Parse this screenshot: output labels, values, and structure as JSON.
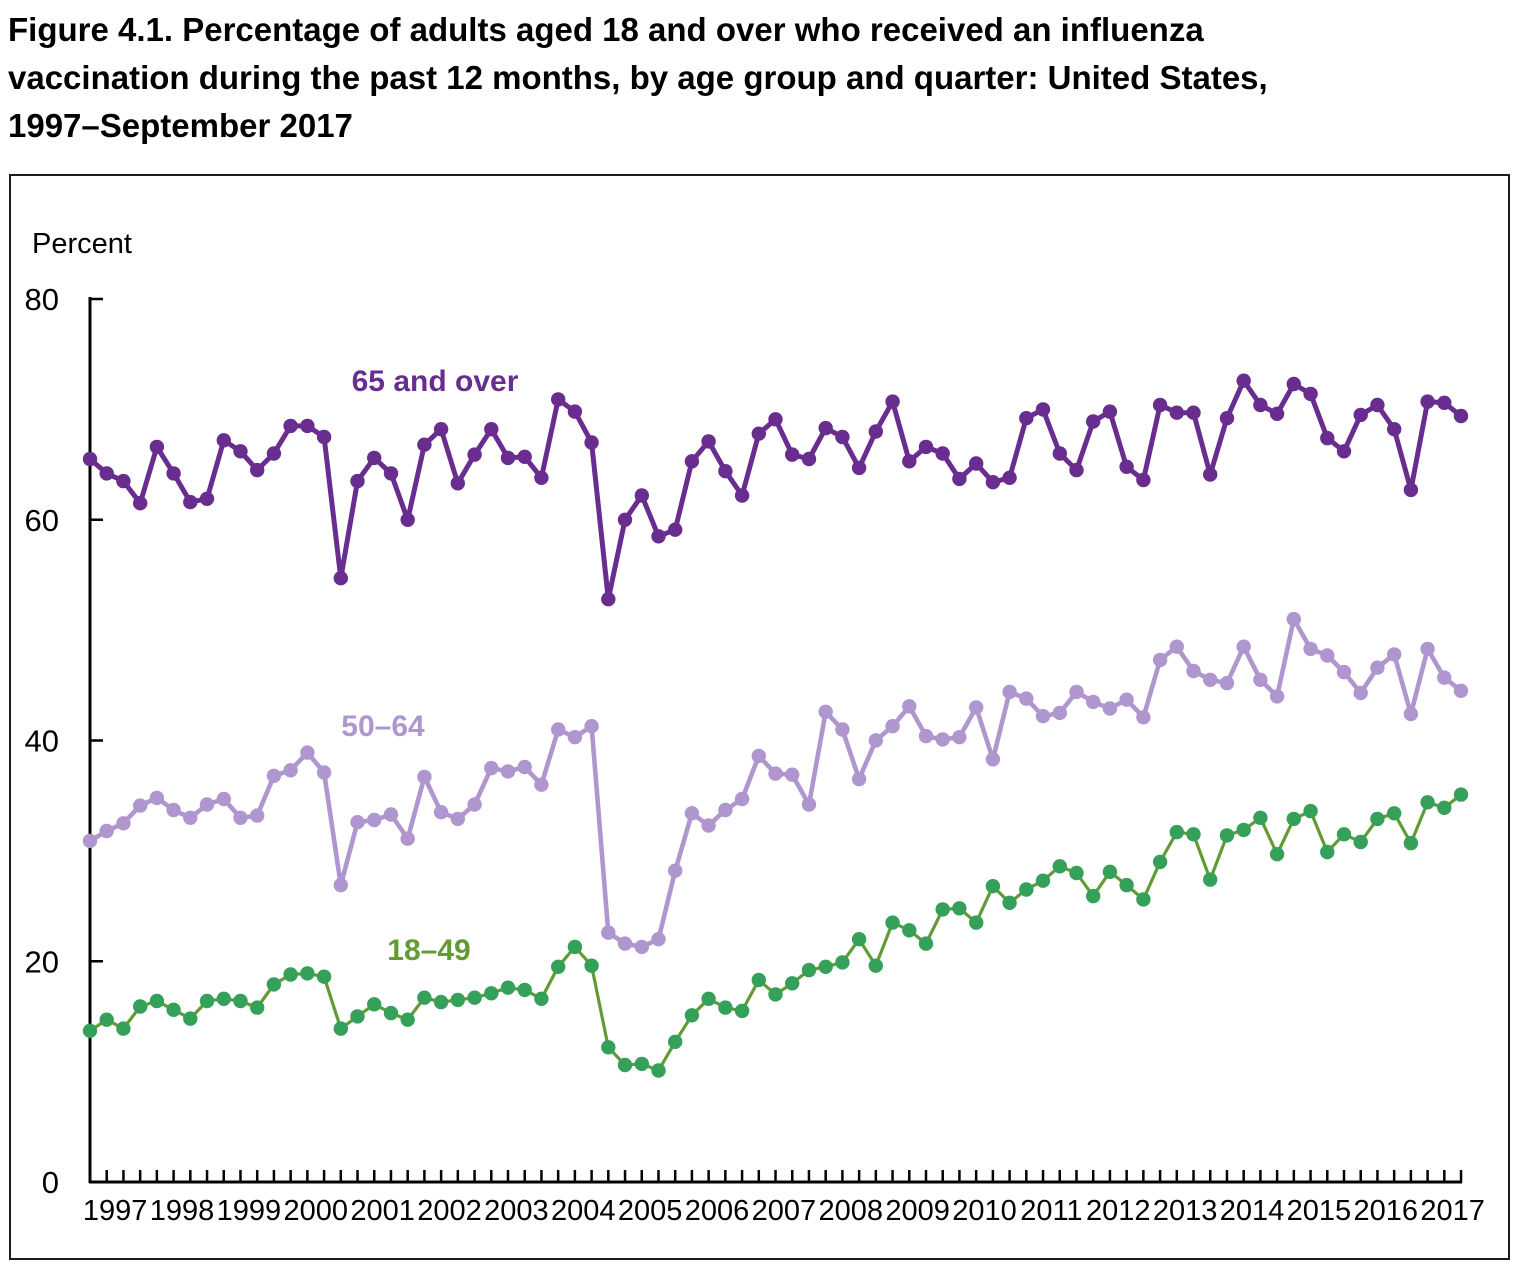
{
  "title_lines": [
    "Figure 4.1. Percentage of adults aged 18 and over who received an influenza",
    "vaccination during the past 12 months, by age group and quarter: United States,",
    "1997–September 2017"
  ],
  "chart": {
    "percent_label": "Percent",
    "y_ticks": [
      80,
      60,
      40,
      20,
      0
    ],
    "x_years": [
      1997,
      1998,
      1999,
      2000,
      2001,
      2002,
      2003,
      2004,
      2005,
      2006,
      2007,
      2008,
      2009,
      2010,
      2011,
      2012,
      2013,
      2014,
      2015,
      2016,
      2017
    ],
    "axis_color": "#000000"
  },
  "chart_data": {
    "type": "line",
    "title": "Percentage of adults aged 18 and over who received an influenza vaccination during the past 12 months, by age group and quarter: United States, 1997–September 2017",
    "xlabel": "",
    "ylabel": "Percent",
    "ylim": [
      0,
      80
    ],
    "grid": false,
    "legend_position": "inline-labels",
    "x_unit": "quarter",
    "x_start": "1997 Q1",
    "x_end": "2017 Q3",
    "points_per_year": 4,
    "series": [
      {
        "name": "65 and over",
        "color": "#682d8f",
        "dot_color": "#682d8f",
        "label_text": "65 and over",
        "values": [
          65.5,
          64.2,
          63.5,
          61.5,
          66.6,
          64.2,
          61.6,
          61.9,
          67.2,
          66.2,
          64.5,
          66.0,
          68.5,
          68.5,
          67.5,
          54.7,
          63.5,
          65.6,
          64.2,
          60.0,
          66.8,
          68.2,
          63.3,
          65.9,
          68.2,
          65.6,
          65.7,
          63.8,
          70.9,
          69.8,
          67.0,
          52.8,
          60.0,
          62.2,
          58.5,
          59.1,
          65.3,
          67.1,
          64.4,
          62.2,
          67.8,
          69.1,
          65.9,
          65.5,
          68.3,
          67.5,
          64.7,
          68.0,
          70.7,
          65.3,
          66.6,
          66.0,
          63.7,
          65.1,
          63.4,
          63.8,
          69.2,
          70.0,
          66.0,
          64.5,
          68.9,
          69.8,
          64.8,
          63.6,
          70.4,
          69.7,
          69.7,
          64.1,
          69.2,
          72.6,
          70.4,
          69.6,
          72.3,
          71.4,
          67.4,
          66.2,
          69.5,
          70.4,
          68.2,
          62.7,
          70.7,
          70.6,
          69.4
        ]
      },
      {
        "name": "50–64",
        "color": "#b096ce",
        "dot_color": "#b096ce",
        "label_text": "50–64",
        "values": [
          30.9,
          31.8,
          32.5,
          34.1,
          34.8,
          33.7,
          33.0,
          34.2,
          34.7,
          33.0,
          33.2,
          36.8,
          37.3,
          38.9,
          37.1,
          26.9,
          32.6,
          32.8,
          33.3,
          31.1,
          36.7,
          33.5,
          32.9,
          34.2,
          37.5,
          37.2,
          37.6,
          36.0,
          41.0,
          40.3,
          41.3,
          22.6,
          21.6,
          21.3,
          22.0,
          28.2,
          33.4,
          32.3,
          33.7,
          34.7,
          38.6,
          37.0,
          36.9,
          34.2,
          42.6,
          41.0,
          36.5,
          40.0,
          41.3,
          43.1,
          40.4,
          40.1,
          40.3,
          43.0,
          38.3,
          44.4,
          43.8,
          42.2,
          42.5,
          44.4,
          43.5,
          42.9,
          43.7,
          42.1,
          47.3,
          48.5,
          46.3,
          45.5,
          45.2,
          48.5,
          45.5,
          44.0,
          51.0,
          48.3,
          47.7,
          46.2,
          44.3,
          46.6,
          47.8,
          42.4,
          48.3,
          45.7,
          44.5
        ]
      },
      {
        "name": "18–49",
        "color": "#629a33",
        "dot_color": "#35a05a",
        "label_text": "18–49",
        "values": [
          13.7,
          14.7,
          13.9,
          15.9,
          16.4,
          15.6,
          14.8,
          16.4,
          16.6,
          16.4,
          15.8,
          17.9,
          18.8,
          18.9,
          18.6,
          13.9,
          15.0,
          16.1,
          15.3,
          14.7,
          16.7,
          16.3,
          16.5,
          16.7,
          17.1,
          17.6,
          17.4,
          16.6,
          19.5,
          21.3,
          19.6,
          12.2,
          10.6,
          10.7,
          10.1,
          12.7,
          15.1,
          16.6,
          15.8,
          15.5,
          18.3,
          17.0,
          18.0,
          19.2,
          19.5,
          19.9,
          22.0,
          19.6,
          23.5,
          22.8,
          21.6,
          24.7,
          24.8,
          23.5,
          26.8,
          25.3,
          26.5,
          27.3,
          28.6,
          28.0,
          25.9,
          28.1,
          26.9,
          25.6,
          29.0,
          31.7,
          31.5,
          27.4,
          31.4,
          31.9,
          33.0,
          29.7,
          32.9,
          33.6,
          29.9,
          31.5,
          30.8,
          32.9,
          33.4,
          30.7,
          34.4,
          33.9,
          35.1
        ]
      }
    ]
  }
}
